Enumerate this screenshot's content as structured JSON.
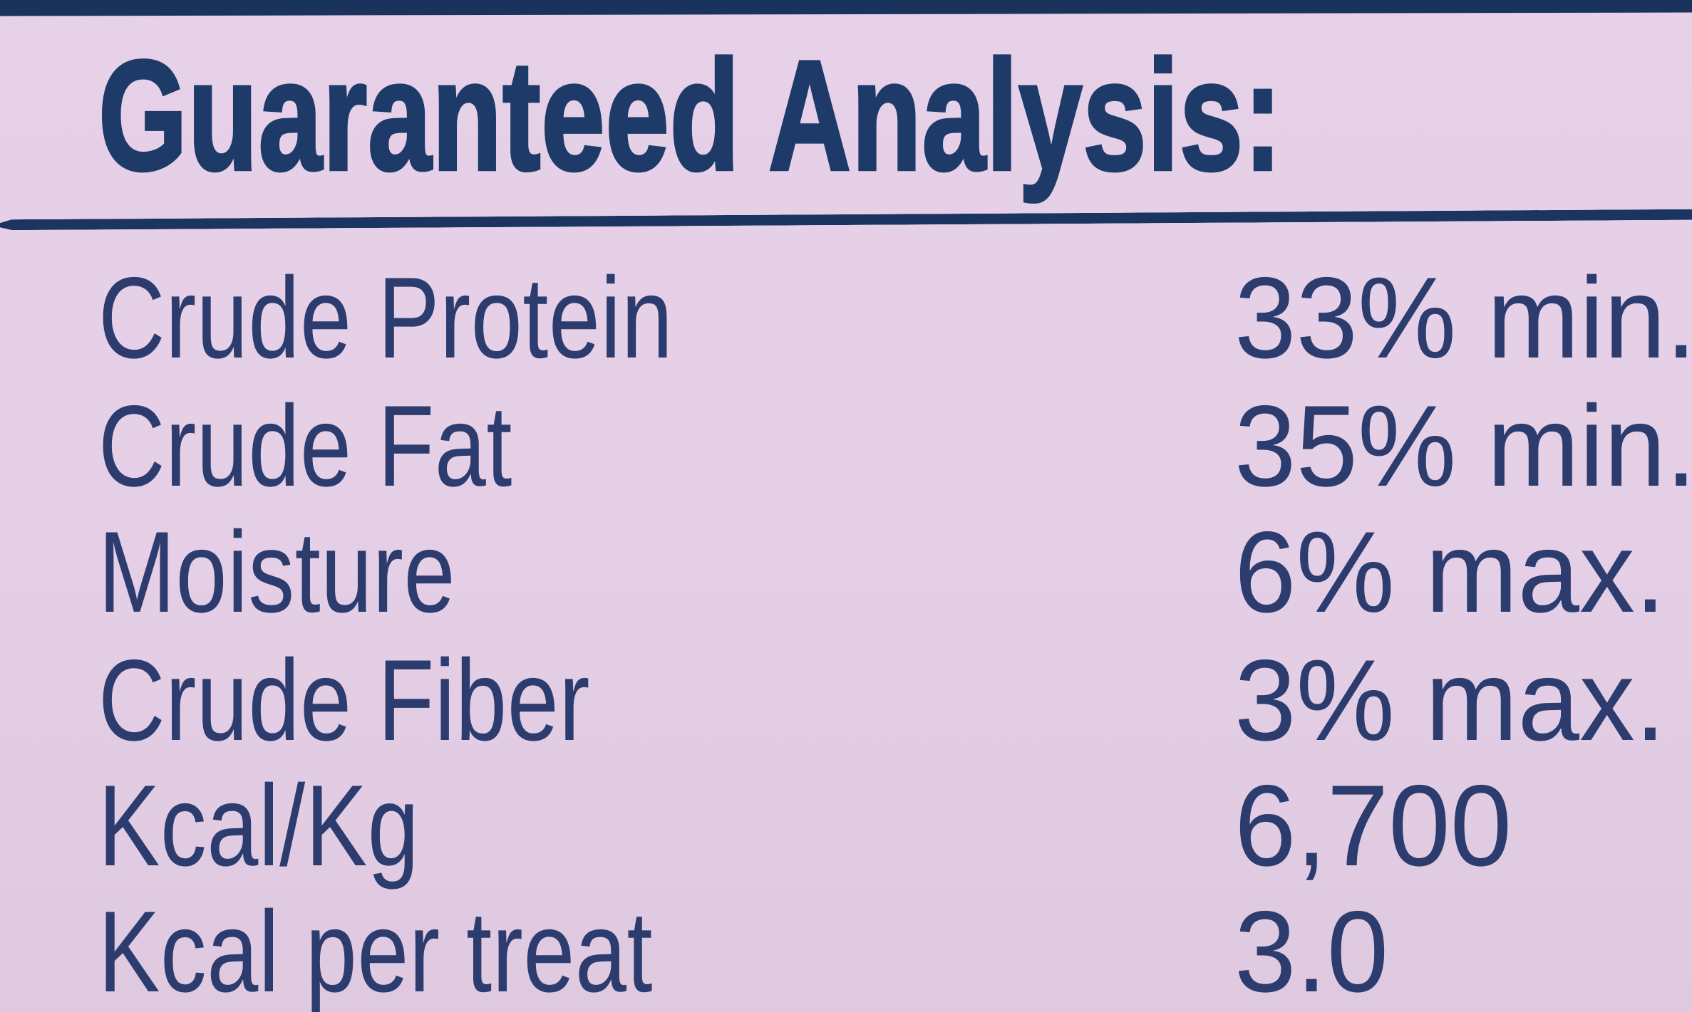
{
  "label": {
    "title": "Guaranteed Analysis:",
    "rows": [
      {
        "name": "Crude Protein",
        "value": "33% min."
      },
      {
        "name": "Crude Fat",
        "value": "35% min."
      },
      {
        "name": "Moisture",
        "value": "6% max."
      },
      {
        "name": "Crude Fiber",
        "value": "3% max."
      },
      {
        "name": "Kcal/Kg",
        "value": "6,700"
      },
      {
        "name": "Kcal per treat",
        "value": "3.0"
      }
    ],
    "colors": {
      "background": "#e5cfe6",
      "navy_bar": "#1a335d",
      "heading_text": "#1d3a68",
      "row_text": "#2c3c6e"
    }
  }
}
